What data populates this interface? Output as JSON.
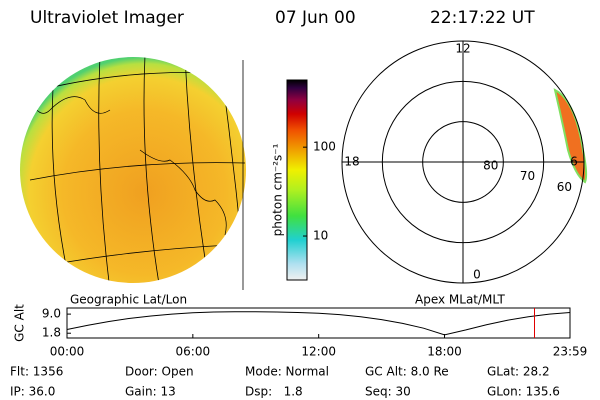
{
  "header": {
    "title": "Ultraviolet Imager",
    "date": "07 Jun 00",
    "time": "22:17:22 UT"
  },
  "colorbar": {
    "label": "photon cm⁻²s⁻¹",
    "log": true,
    "clim": [
      3.2,
      570
    ],
    "ticks": [
      100,
      10
    ]
  },
  "polar": {
    "rlim": [
      90,
      60
    ],
    "rings": [
      80,
      70,
      60
    ],
    "mlt_ticks": [
      12,
      18,
      6,
      0
    ]
  },
  "chart_data": {
    "type": "line",
    "ylabel": "GC Alt",
    "left_title": "Geographic Lat/Lon",
    "right_title": "Apex MLat/MLT",
    "x": [
      0,
      1,
      2,
      3,
      4,
      5,
      6,
      7,
      8,
      9,
      10,
      11,
      12,
      13,
      14,
      15,
      16,
      17,
      18,
      19,
      20,
      21,
      22,
      23,
      23.983
    ],
    "series": [
      {
        "name": "GC Alt",
        "color": "#000000",
        "values": [
          3.2,
          4.8,
          6.2,
          7.4,
          8.3,
          9.0,
          9.5,
          9.8,
          9.9,
          9.9,
          9.8,
          9.6,
          9.3,
          8.8,
          8.0,
          6.9,
          5.5,
          3.7,
          1.2,
          3.0,
          5.0,
          6.7,
          8.0,
          9.0,
          9.6
        ]
      }
    ],
    "marker_x": 22.29,
    "marker_color": "#e00000",
    "xlim": [
      0,
      23.983
    ],
    "ylim": [
      0,
      11.3
    ],
    "xticks": [
      {
        "value": 0,
        "label": "00:00"
      },
      {
        "value": 6,
        "label": "06:00"
      },
      {
        "value": 12,
        "label": "12:00"
      },
      {
        "value": 18,
        "label": "18:00"
      },
      {
        "value": 23.983,
        "label": "23:59"
      }
    ],
    "yticks": [
      {
        "value": 9.0,
        "label": "9.0"
      },
      {
        "value": 1.8,
        "label": "1.8"
      }
    ]
  },
  "info": [
    [
      "Flt: 1356",
      "Door: Open",
      "Mode: Normal",
      "GC Alt: 8.0 Re",
      "GLat: 28.2"
    ],
    [
      "IP: 36.0",
      "Gain: 13",
      "Dsp:   1.8",
      "Seq: 30",
      "GLon: 135.6"
    ]
  ]
}
